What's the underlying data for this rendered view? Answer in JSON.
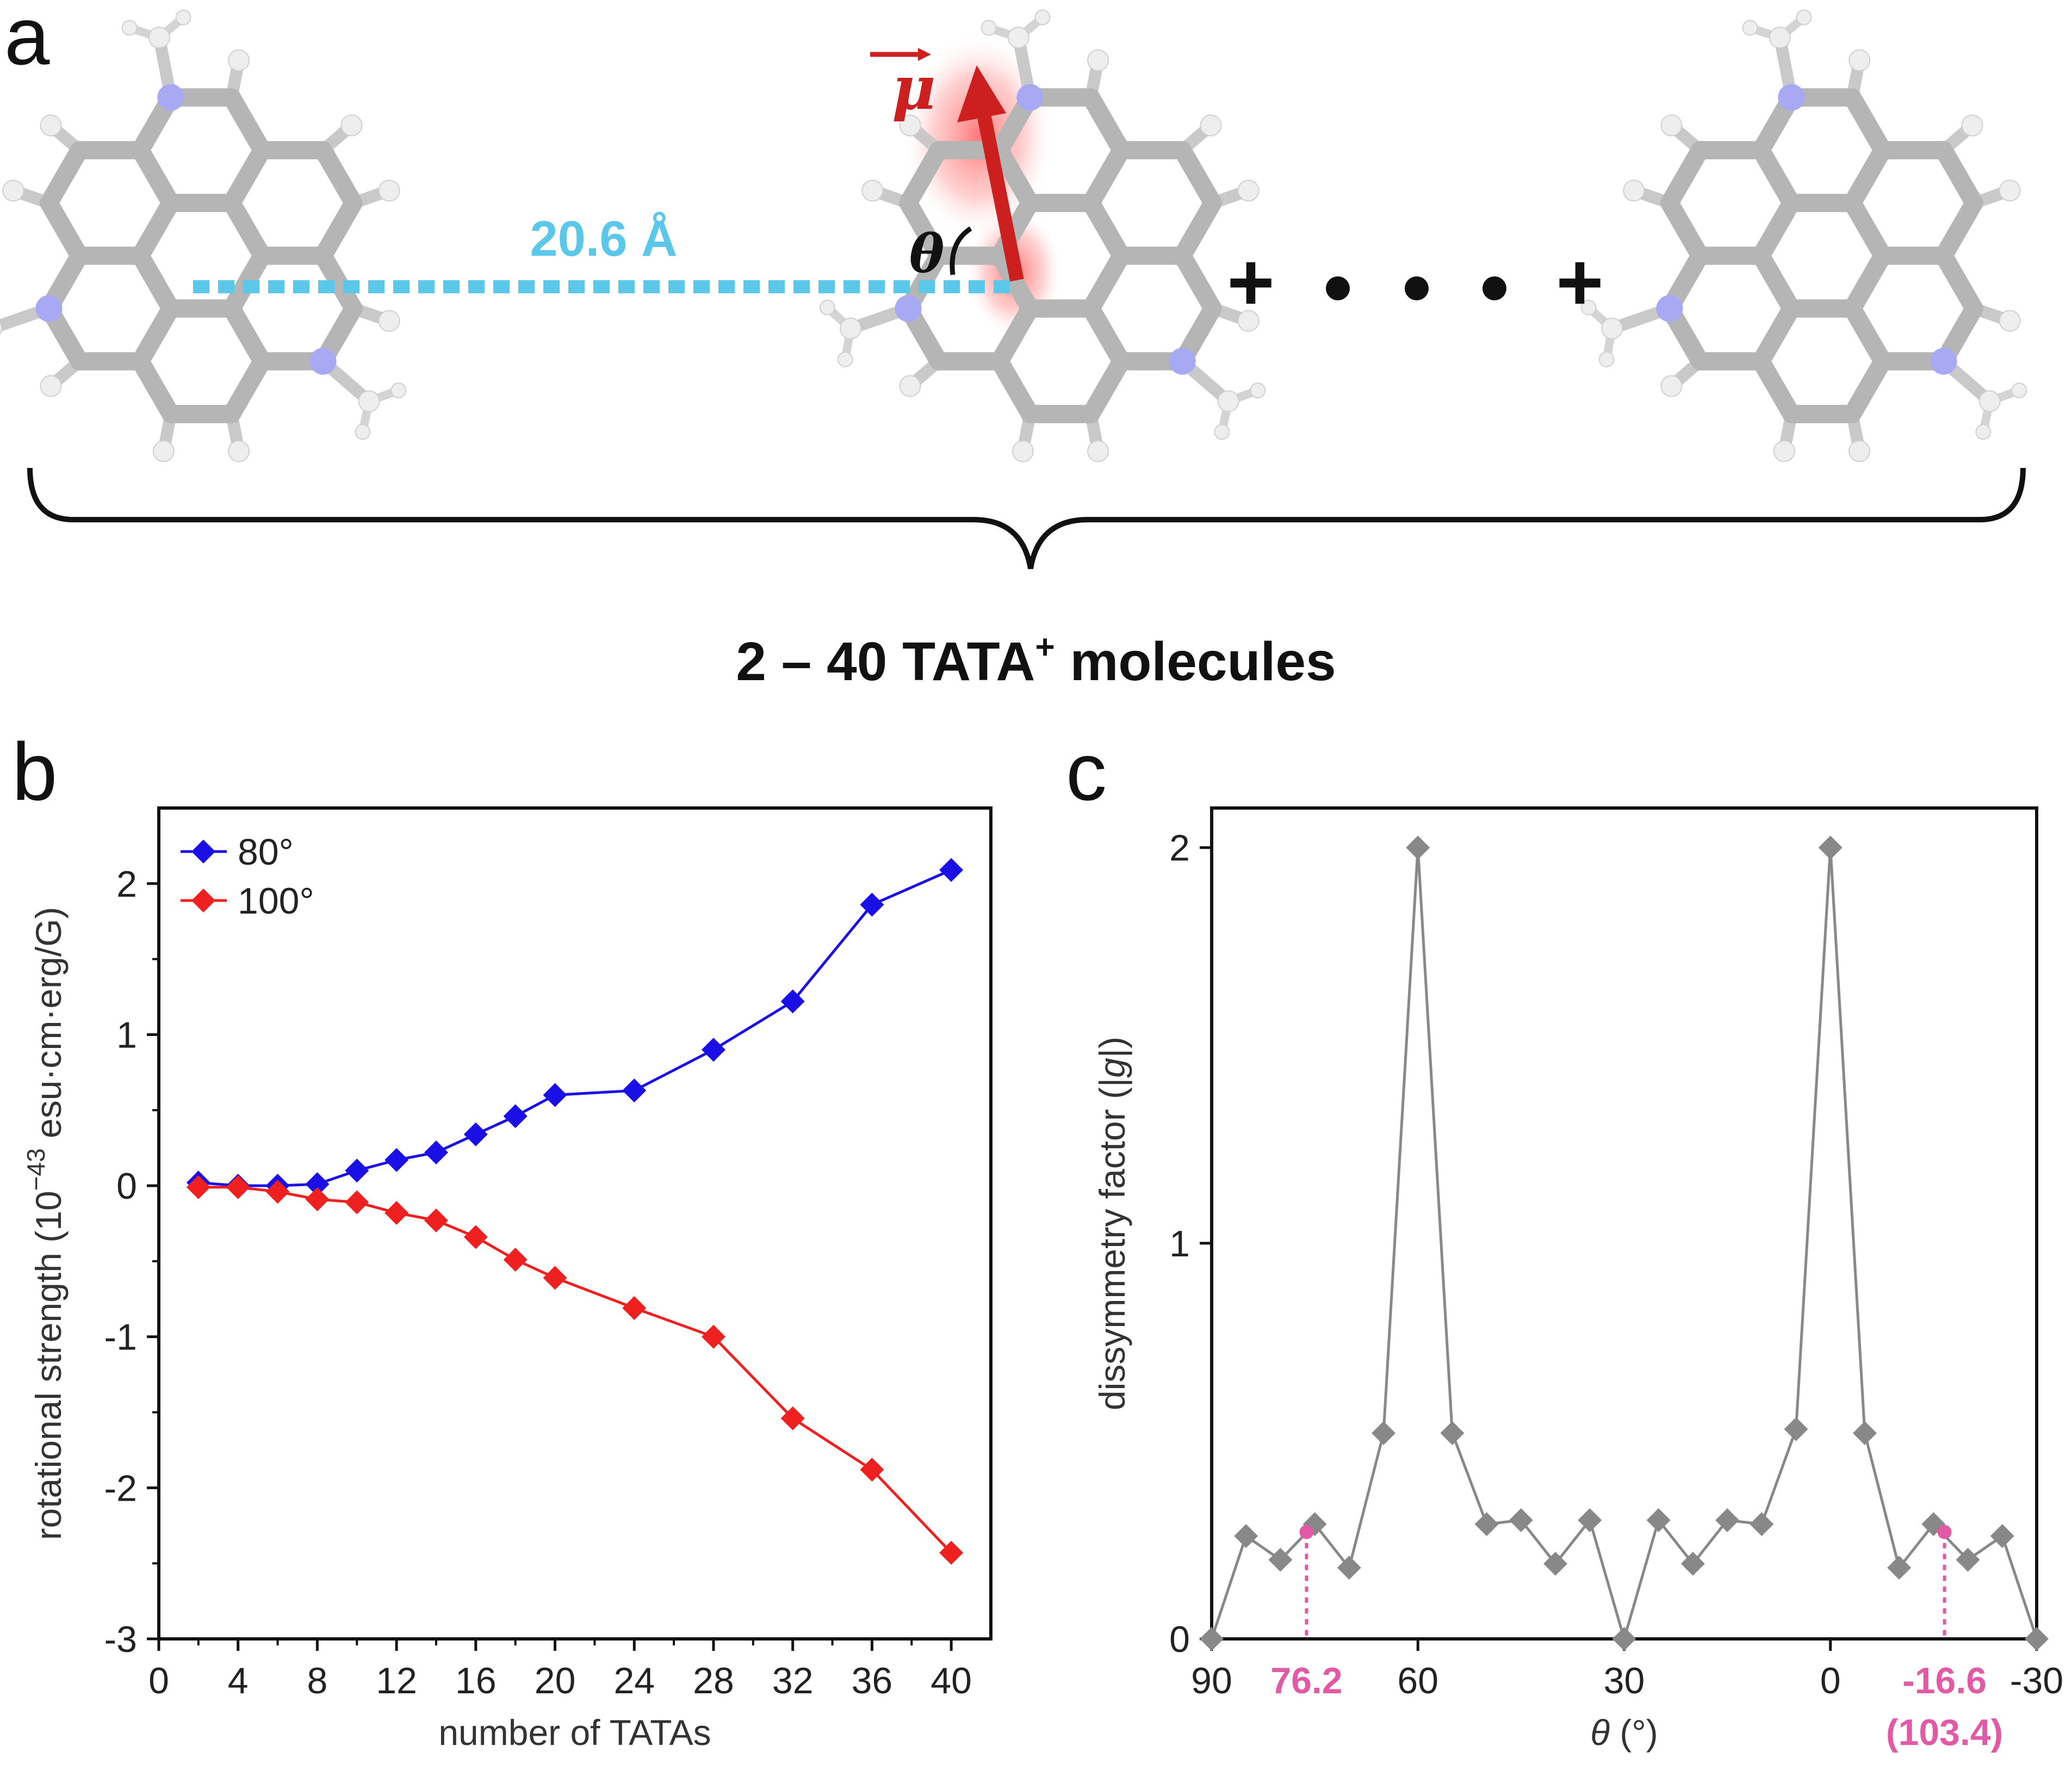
{
  "panels": {
    "a": {
      "letter": "a",
      "distance_label": "20.6 Å",
      "angle_label": "θ",
      "dipole_label": "μ",
      "plus_left": "+",
      "plus_right": "+",
      "caption_prefix": "2 – 40 TATA",
      "caption_sup": "+",
      "caption_suffix": " molecules",
      "colors": {
        "distance": "#5bc8ea",
        "dipole": "#cc1f1f",
        "nitrogen": "#a7aaf2",
        "carbon": "#b5b5b5",
        "hydrogen": "#eeeeee"
      }
    },
    "b": {
      "letter": "b"
    },
    "c": {
      "letter": "c"
    }
  },
  "chart_data": [
    {
      "panel": "b",
      "type": "line",
      "title": "",
      "xlabel": "number of TATAs",
      "ylabel_prefix": "rotational strength (10",
      "ylabel_exp": "−43",
      "ylabel_suffix": " esu·cm·erg/G)",
      "xlim": [
        0,
        42
      ],
      "ylim": [
        -3,
        2.5
      ],
      "xticks": [
        0,
        4,
        8,
        12,
        16,
        20,
        24,
        28,
        32,
        36,
        40
      ],
      "xtick_labels": [
        "0",
        "4",
        "8",
        "12",
        "16",
        "20",
        "24",
        "28",
        "32",
        "36",
        "40"
      ],
      "yticks": [
        -3,
        -2,
        -1,
        0,
        1,
        2
      ],
      "ytick_labels": [
        "-3",
        "-2",
        "-1",
        "0",
        "1",
        "2"
      ],
      "legend_position": "top-left",
      "series": [
        {
          "name": "80°",
          "color": "#1a10e6",
          "x": [
            2,
            4,
            6,
            8,
            10,
            12,
            14,
            16,
            18,
            20,
            24,
            28,
            32,
            36,
            40
          ],
          "y": [
            0.02,
            0.0,
            0.0,
            0.01,
            0.1,
            0.17,
            0.22,
            0.34,
            0.46,
            0.6,
            0.63,
            0.9,
            1.22,
            1.86,
            2.09
          ]
        },
        {
          "name": "100°",
          "color": "#ee2020",
          "x": [
            2,
            4,
            6,
            8,
            10,
            12,
            14,
            16,
            18,
            20,
            24,
            28,
            32,
            36,
            40
          ],
          "y": [
            -0.01,
            -0.01,
            -0.04,
            -0.09,
            -0.11,
            -0.18,
            -0.23,
            -0.34,
            -0.49,
            -0.61,
            -0.81,
            -1.0,
            -1.54,
            -1.88,
            -2.43
          ]
        }
      ]
    },
    {
      "panel": "c",
      "type": "line",
      "title": "",
      "xlabel_var": "θ",
      "xlabel_unit": " (°)",
      "ylabel_prefix": "dissymmetry factor (|",
      "ylabel_var": "g",
      "ylabel_suffix": "|)",
      "xlim": [
        90,
        -30
      ],
      "ylim": [
        0,
        2.1
      ],
      "xticks": [
        90,
        60,
        30,
        0,
        -30
      ],
      "xtick_labels": [
        "90",
        "60",
        "30",
        "0",
        "-30"
      ],
      "yticks": [
        0,
        1,
        2
      ],
      "ytick_labels": [
        "0",
        "1",
        "2"
      ],
      "series": [
        {
          "name": "|g|",
          "color": "#888888",
          "x": [
            90,
            85,
            80,
            75,
            70,
            65,
            60,
            55,
            50,
            45,
            40,
            35,
            30,
            25,
            20,
            15,
            10,
            5,
            0,
            -5,
            -10,
            -15,
            -20,
            -25,
            -30
          ],
          "y": [
            0.0,
            0.26,
            0.2,
            0.29,
            0.18,
            0.52,
            2.0,
            0.52,
            0.29,
            0.3,
            0.19,
            0.3,
            0.0,
            0.3,
            0.19,
            0.3,
            0.29,
            0.53,
            2.0,
            0.52,
            0.18,
            0.29,
            0.2,
            0.26,
            0.0
          ]
        }
      ],
      "highlights": [
        {
          "x": 76.2,
          "y": 0.27,
          "label": "76.2",
          "sublabel": ""
        },
        {
          "x": -16.6,
          "y": 0.27,
          "label": "-16.6",
          "sublabel": "(103.4)"
        }
      ],
      "highlight_color": "#e25aa6"
    }
  ]
}
